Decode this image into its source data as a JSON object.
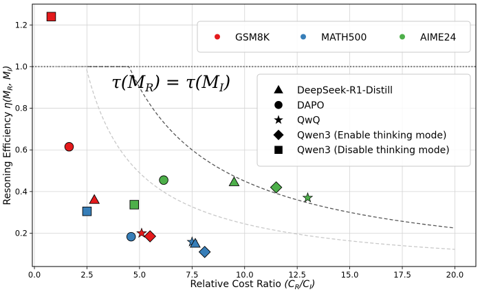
{
  "chart_data": {
    "type": "scatter",
    "title": "",
    "xlabel": "Relative Cost Ratio",
    "xlabel_sym": "(C_R/C_I)",
    "ylabel": "Resoning Efficiency",
    "ylabel_sym": "η(M_R, M_I)",
    "xlim": [
      -0.1,
      21.0
    ],
    "ylim": [
      0.04,
      1.3
    ],
    "xticks": [
      0.0,
      2.5,
      5.0,
      7.5,
      10.0,
      12.5,
      15.0,
      17.5,
      20.0
    ],
    "xtick_labels": [
      "0.0",
      "2.5",
      "5.0",
      "7.5",
      "10.0",
      "12.5",
      "15.0",
      "17.5",
      "20.0"
    ],
    "yticks": [
      0.2,
      0.4,
      0.6,
      0.8,
      1.0,
      1.2
    ],
    "ytick_labels": [
      "0.2",
      "0.4",
      "0.6",
      "0.8",
      "1.0",
      "1.2"
    ],
    "grid": true,
    "annotation": "τ(M_R) = τ(M_I)",
    "reference_line_y": 1.0,
    "curves": [
      {
        "style": "dark-dashed",
        "coef": 4.5,
        "x_start": 1.0,
        "x_end": 20.0
      },
      {
        "style": "light-dashed",
        "coef": 2.45,
        "x_start": 1.0,
        "x_end": 20.0
      }
    ],
    "dataset_legend": {
      "placement": "top-right",
      "entries": [
        {
          "label": "GSM8K",
          "color": "#e41a1c"
        },
        {
          "label": "MATH500",
          "color": "#377eb8"
        },
        {
          "label": "AIME24",
          "color": "#4daf4a"
        }
      ]
    },
    "model_legend": {
      "placement": "center-right",
      "entries": [
        {
          "label": "DeepSeek-R1-Distill",
          "marker": "triangle"
        },
        {
          "label": "DAPO",
          "marker": "circle"
        },
        {
          "label": "QwQ",
          "marker": "star"
        },
        {
          "label": "Qwen3 (Enable thinking mode)",
          "marker": "diamond"
        },
        {
          "label": "Qwen3 (Disable thinking mode)",
          "marker": "square"
        }
      ]
    },
    "points": [
      {
        "dataset": "GSM8K",
        "model": "Qwen3 (Disable thinking mode)",
        "x": 0.8,
        "y": 1.24
      },
      {
        "dataset": "GSM8K",
        "model": "DAPO",
        "x": 1.65,
        "y": 0.615
      },
      {
        "dataset": "GSM8K",
        "model": "DeepSeek-R1-Distill",
        "x": 2.85,
        "y": 0.36
      },
      {
        "dataset": "GSM8K",
        "model": "QwQ",
        "x": 5.1,
        "y": 0.2
      },
      {
        "dataset": "GSM8K",
        "model": "Qwen3 (Enable thinking mode)",
        "x": 5.5,
        "y": 0.185
      },
      {
        "dataset": "MATH500",
        "model": "Qwen3 (Disable thinking mode)",
        "x": 2.5,
        "y": 0.305
      },
      {
        "dataset": "MATH500",
        "model": "DAPO",
        "x": 4.6,
        "y": 0.183
      },
      {
        "dataset": "MATH500",
        "model": "QwQ",
        "x": 7.5,
        "y": 0.158
      },
      {
        "dataset": "MATH500",
        "model": "DeepSeek-R1-Distill",
        "x": 7.65,
        "y": 0.15
      },
      {
        "dataset": "MATH500",
        "model": "Qwen3 (Enable thinking mode)",
        "x": 8.1,
        "y": 0.11
      },
      {
        "dataset": "AIME24",
        "model": "Qwen3 (Disable thinking mode)",
        "x": 4.75,
        "y": 0.337
      },
      {
        "dataset": "AIME24",
        "model": "DAPO",
        "x": 6.15,
        "y": 0.455
      },
      {
        "dataset": "AIME24",
        "model": "DeepSeek-R1-Distill",
        "x": 9.5,
        "y": 0.445
      },
      {
        "dataset": "AIME24",
        "model": "Qwen3 (Enable thinking mode)",
        "x": 11.5,
        "y": 0.42
      },
      {
        "dataset": "AIME24",
        "model": "QwQ",
        "x": 13.0,
        "y": 0.37
      }
    ]
  }
}
